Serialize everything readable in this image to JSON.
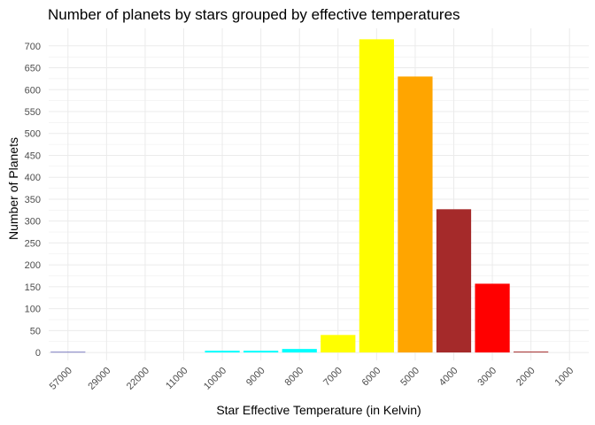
{
  "chart_data": {
    "type": "bar",
    "title": "Number of planets by stars grouped by effective temperatures",
    "xlabel": "Star Effective Temperature (in Kelvin)",
    "ylabel": "Number of Planets",
    "categories": [
      "57000",
      "29000",
      "22000",
      "11000",
      "10000",
      "9000",
      "8000",
      "7000",
      "6000",
      "5000",
      "4000",
      "3000",
      "2000",
      "1000"
    ],
    "values": [
      1,
      0,
      0,
      0,
      4,
      4,
      8,
      40,
      715,
      630,
      327,
      157,
      2,
      0
    ],
    "colors": [
      "#00008b",
      "#00008b",
      "#add8e6",
      "#add8e6",
      "#00ffff",
      "#00ffff",
      "#00ffff",
      "#ffff00",
      "#ffff00",
      "#ffa500",
      "#a52a2a",
      "#ff0000",
      "#a52a2a",
      "#a52a2a"
    ],
    "ylim": [
      -18,
      740
    ],
    "yticks": [
      0,
      50,
      100,
      150,
      200,
      250,
      300,
      350,
      400,
      450,
      500,
      550,
      600,
      650,
      700
    ],
    "grid": true,
    "legend": "none",
    "grid_color": "#ebebeb",
    "tick_label_color": "#4d4d4d"
  }
}
